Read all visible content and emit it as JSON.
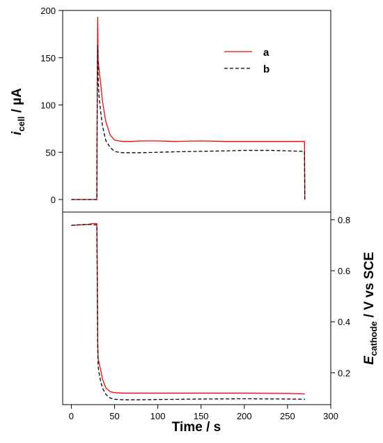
{
  "chart_data": {
    "type": "line",
    "xlabel": "Time / s",
    "x_ticks": [
      "0",
      "50",
      "100",
      "150",
      "200",
      "250",
      "300"
    ],
    "xlim": [
      -10,
      300
    ],
    "panels": [
      {
        "ylabel_main": "i",
        "ylabel_sub": "cell",
        "ylabel_rest": " / µA",
        "ylim": [
          0,
          200
        ],
        "y_ticks": [
          "0",
          "50",
          "100",
          "150",
          "200"
        ],
        "series": [
          {
            "name": "a",
            "color": "#ff0000",
            "style": "solid",
            "x": [
              0,
              29.5,
              30,
              30.5,
              31,
              32,
              34,
              36,
              40,
              45,
              50,
              55,
              60,
              70,
              80,
              100,
              120,
              150,
              180,
              200,
              230,
              250,
              268,
              269.6,
              270
            ],
            "y": [
              0,
              0,
              120,
              193,
              148,
              138,
              122,
              104,
              82,
              68,
              63,
              62,
              61.5,
              61.5,
              62,
              62,
              61.5,
              62,
              61.5,
              61.5,
              61.5,
              61.5,
              61.5,
              61.5,
              0
            ]
          },
          {
            "name": "b",
            "color": "#000000",
            "style": "dashed",
            "x": [
              0,
              29.5,
              30,
              30.5,
              31,
              32,
              34,
              36,
              40,
              45,
              50,
              55,
              60,
              70,
              80,
              100,
              120,
              150,
              180,
              200,
              230,
              250,
              268,
              269.6,
              270
            ],
            "y": [
              0,
              0,
              110,
              163,
              130,
              110,
              92,
              78,
              62,
              55,
              51,
              50,
              49.5,
              49.5,
              49.5,
              50,
              50.5,
              51,
              51.5,
              52,
              52,
              51.5,
              51,
              51,
              0
            ]
          }
        ]
      },
      {
        "ylabel_main": "E",
        "ylabel_sub": "cathode",
        "ylabel_rest": " / V vs SCE",
        "ylim": [
          0.075,
          0.83
        ],
        "y_ticks": [
          "0.2",
          "0.4",
          "0.6",
          "0.8"
        ],
        "series": [
          {
            "name": "a",
            "color": "#ff0000",
            "style": "solid",
            "x": [
              0,
              10,
              20,
              25,
              29.5,
              30,
              30.5,
              31,
              32,
              34,
              36,
              40,
              45,
              50,
              55,
              60,
              80,
              100,
              150,
              200,
              250,
              270
            ],
            "y": [
              0.778,
              0.78,
              0.782,
              0.785,
              0.785,
              0.6,
              0.33,
              0.255,
              0.24,
              0.21,
              0.175,
              0.14,
              0.126,
              0.122,
              0.121,
              0.12,
              0.12,
              0.12,
              0.12,
              0.12,
              0.119,
              0.117
            ]
          },
          {
            "name": "b",
            "color": "#000000",
            "style": "dashed",
            "x": [
              0,
              10,
              20,
              25,
              29.5,
              30,
              30.5,
              31,
              32,
              34,
              36,
              40,
              45,
              50,
              55,
              60,
              80,
              100,
              150,
              200,
              250,
              270
            ],
            "y": [
              0.778,
              0.78,
              0.782,
              0.78,
              0.78,
              0.55,
              0.3,
              0.225,
              0.2,
              0.165,
              0.14,
              0.115,
              0.101,
              0.096,
              0.095,
              0.094,
              0.094,
              0.095,
              0.097,
              0.098,
              0.097,
              0.096
            ]
          }
        ]
      }
    ],
    "legend": {
      "position": "top-right",
      "entries": [
        {
          "label": "a",
          "color": "#ff0000",
          "style": "solid"
        },
        {
          "label": "b",
          "color": "#000000",
          "style": "dashed"
        }
      ]
    }
  }
}
